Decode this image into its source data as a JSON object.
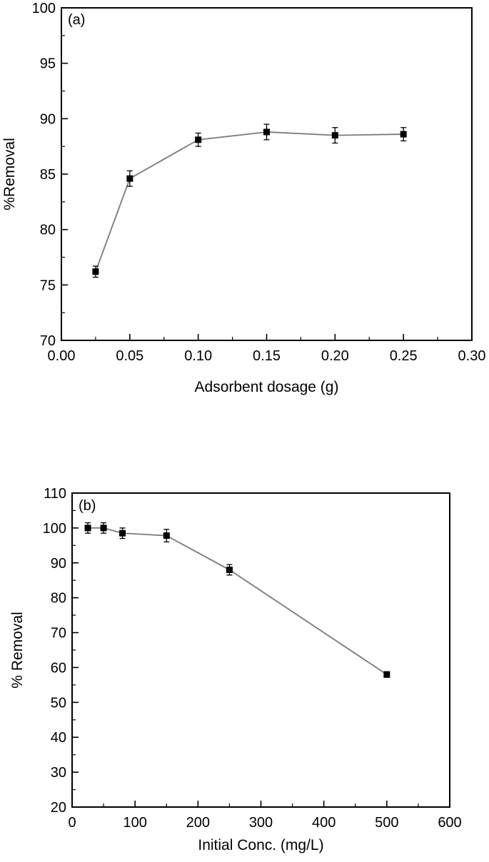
{
  "page": {
    "background": "#ffffff"
  },
  "chart_data": [
    {
      "id": "a",
      "type": "line",
      "panel_label": "(a)",
      "title": "",
      "xlabel": "Adsorbent dosage (g)",
      "ylabel": "%Removal",
      "xlim": [
        0.0,
        0.3
      ],
      "ylim": [
        70,
        100
      ],
      "xticks": [
        0.0,
        0.05,
        0.1,
        0.15,
        0.2,
        0.25,
        0.3
      ],
      "xtick_labels": [
        "0.00",
        "0.05",
        "0.10",
        "0.15",
        "0.20",
        "0.25",
        "0.30"
      ],
      "yticks": [
        70,
        75,
        80,
        85,
        90,
        95,
        100
      ],
      "ytick_labels": [
        "70",
        "75",
        "80",
        "85",
        "90",
        "95",
        "100"
      ],
      "x_minor_step": 0.025,
      "y_minor_step": 2.5,
      "grid": false,
      "legend": "none",
      "line_color": "#7a7a7a",
      "marker": "square",
      "marker_color": "#000000",
      "series": [
        {
          "name": "percent-removal-vs-dosage",
          "x": [
            0.025,
            0.05,
            0.1,
            0.15,
            0.2,
            0.25
          ],
          "y": [
            76.2,
            84.6,
            88.1,
            88.8,
            88.5,
            88.6
          ],
          "yerr": [
            0.5,
            0.7,
            0.6,
            0.7,
            0.7,
            0.6
          ]
        }
      ]
    },
    {
      "id": "b",
      "type": "line",
      "panel_label": "(b)",
      "title": "",
      "xlabel": "Initial Conc. (mg/L)",
      "ylabel": "% Removal",
      "xlim": [
        0,
        600
      ],
      "ylim": [
        20,
        110
      ],
      "xticks": [
        0,
        100,
        200,
        300,
        400,
        500,
        600
      ],
      "xtick_labels": [
        "0",
        "100",
        "200",
        "300",
        "400",
        "500",
        "600"
      ],
      "yticks": [
        20,
        30,
        40,
        50,
        60,
        70,
        80,
        90,
        100,
        110
      ],
      "ytick_labels": [
        "20",
        "30",
        "40",
        "50",
        "60",
        "70",
        "80",
        "90",
        "100",
        "110"
      ],
      "x_minor_step": 50,
      "y_minor_step": 5,
      "grid": false,
      "legend": "none",
      "line_color": "#7a7a7a",
      "marker": "square",
      "marker_color": "#000000",
      "series": [
        {
          "name": "percent-removal-vs-initial-conc",
          "x": [
            25,
            50,
            80,
            150,
            250,
            500
          ],
          "y": [
            100,
            100,
            98.5,
            97.8,
            88,
            58
          ],
          "yerr": [
            1.5,
            1.5,
            1.5,
            1.8,
            1.5,
            0.8
          ]
        }
      ]
    }
  ]
}
